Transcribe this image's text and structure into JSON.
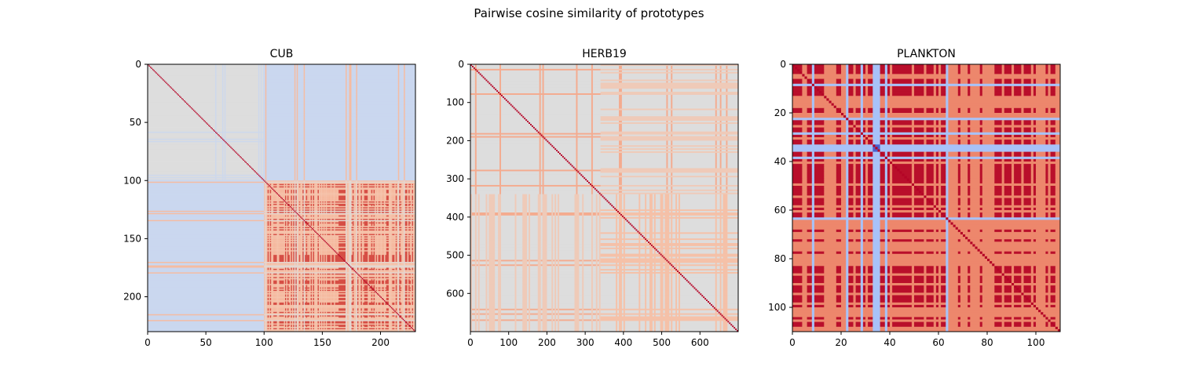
{
  "figure": {
    "suptitle": "Pairwise cosine similarity of prototypes"
  },
  "chart_data": [
    {
      "type": "heatmap",
      "title": "CUB",
      "n": 230,
      "xlim": [
        0,
        230
      ],
      "ylim": [
        230,
        0
      ],
      "xticks": [
        0,
        50,
        100,
        150,
        200
      ],
      "yticks": [
        0,
        50,
        100,
        150,
        200
      ],
      "xlabel": "",
      "ylabel": "",
      "colormap": "coolwarm",
      "structure": {
        "block_boundary": 100,
        "diagonal_value": 1.0,
        "top_left_block": "~0 (near-neutral grey)",
        "off_diagonal_blocks": "slightly negative (light blue)",
        "bottom_right_block": "positive with strong red stripes"
      }
    },
    {
      "type": "heatmap",
      "title": "HERB19",
      "n": 700,
      "xlim": [
        0,
        700
      ],
      "ylim": [
        700,
        0
      ],
      "xticks": [
        0,
        100,
        200,
        300,
        400,
        500,
        600
      ],
      "yticks": [
        0,
        100,
        200,
        300,
        400,
        500,
        600
      ],
      "xlabel": "",
      "ylabel": "",
      "colormap": "coolwarm",
      "structure": {
        "block_boundary": 340,
        "diagonal_value": 1.0,
        "background": "~0 (neutral grey)",
        "stripes": "sparse light-orange lines, denser in bottom-right block"
      }
    },
    {
      "type": "heatmap",
      "title": "PLANKTON",
      "n": 110,
      "xlim": [
        0,
        110
      ],
      "ylim": [
        110,
        0
      ],
      "xticks": [
        0,
        20,
        40,
        60,
        80,
        100
      ],
      "yticks": [
        0,
        20,
        40,
        60,
        80,
        100
      ],
      "xlabel": "",
      "ylabel": "",
      "colormap": "coolwarm",
      "structure": {
        "diagonal_value": 1.0,
        "background": "mostly strong positive (red / salmon stripes)",
        "stripes": "light-blue rows/cols near 8, 22, 28, 33-35, 38, 63"
      }
    }
  ],
  "colors": {
    "neutral": "#dcdcdc",
    "light_blue": "#c4d5f3",
    "blue": "#aac7fd",
    "salmon": "#f59f80",
    "light_salmon": "#f6bfa6",
    "red": "#c0282f",
    "deep_red": "#b40426",
    "purple": "#7a3e8c"
  }
}
